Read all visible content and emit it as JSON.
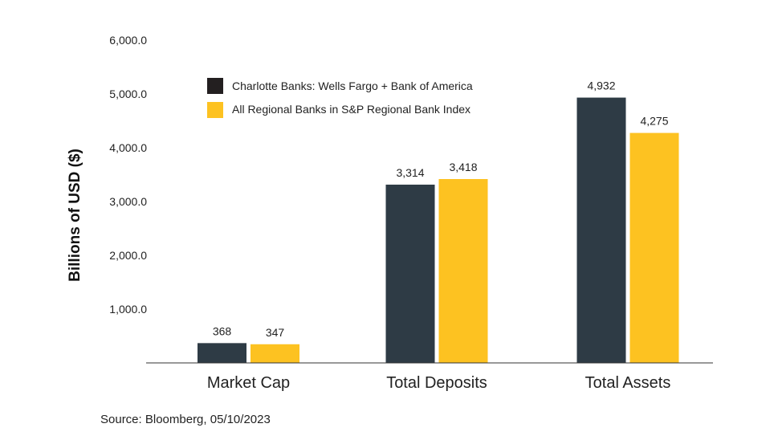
{
  "chart_data": {
    "type": "bar",
    "title": "",
    "xlabel": "",
    "ylabel": "Billions of USD ($)",
    "ylim": [
      0,
      6000
    ],
    "yticks": [
      1000,
      2000,
      3000,
      4000,
      5000,
      6000
    ],
    "ytick_labels": [
      "1,000.0",
      "2,000.0",
      "3,000.0",
      "4,000.0",
      "5,000.0",
      "6,000.0"
    ],
    "categories": [
      "Market Cap",
      "Total Deposits",
      "Total Assets"
    ],
    "series": [
      {
        "name": "Charlotte Banks: Wells Fargo + Bank of America",
        "color": "#2e3b45",
        "values": [
          368,
          3314,
          4932
        ],
        "labels": [
          "368",
          "3,314",
          "4,932"
        ]
      },
      {
        "name": "All Regional Banks in S&P Regional Bank Index",
        "color": "#fdc221",
        "values": [
          347,
          3418,
          4275
        ],
        "labels": [
          "347",
          "3,418",
          "4,275"
        ]
      }
    ],
    "legend_colors": [
      "#231f20",
      "#fdc221"
    ],
    "grid": false,
    "legend_position": "top-left",
    "source": "Source: Bloomberg, 05/10/2023"
  }
}
